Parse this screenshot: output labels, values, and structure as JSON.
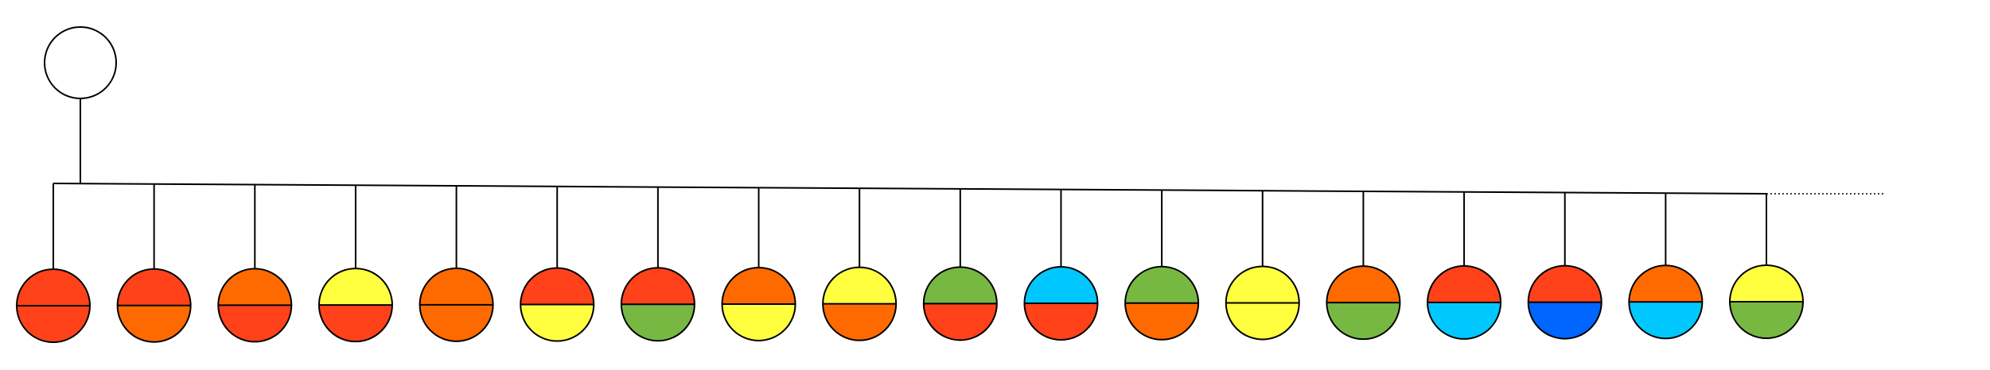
{
  "root": {
    "color": "#ffffff"
  },
  "nodes": [
    {
      "top": "#ff4219",
      "bottom": "#ff4219"
    },
    {
      "top": "#ff4219",
      "bottom": "#ff6a00"
    },
    {
      "top": "#ff6a00",
      "bottom": "#ff4219"
    },
    {
      "top": "#ffff40",
      "bottom": "#ff4219"
    },
    {
      "top": "#ff6a00",
      "bottom": "#ff6a00"
    },
    {
      "top": "#ff4219",
      "bottom": "#ffff40"
    },
    {
      "top": "#ff4219",
      "bottom": "#77b843"
    },
    {
      "top": "#ff6a00",
      "bottom": "#ffff40"
    },
    {
      "top": "#ffff40",
      "bottom": "#ff6a00"
    },
    {
      "top": "#77b843",
      "bottom": "#ff4219"
    },
    {
      "top": "#00c8ff",
      "bottom": "#ff4219"
    },
    {
      "top": "#77b843",
      "bottom": "#ff6a00"
    },
    {
      "top": "#ffff40",
      "bottom": "#ffff40"
    },
    {
      "top": "#ff6a00",
      "bottom": "#77b843"
    },
    {
      "top": "#ff4219",
      "bottom": "#00c8ff"
    },
    {
      "top": "#ff4219",
      "bottom": "#0066ff"
    },
    {
      "top": "#ff6a00",
      "bottom": "#00c8ff"
    },
    {
      "top": "#ffff40",
      "bottom": "#77b843"
    }
  ]
}
